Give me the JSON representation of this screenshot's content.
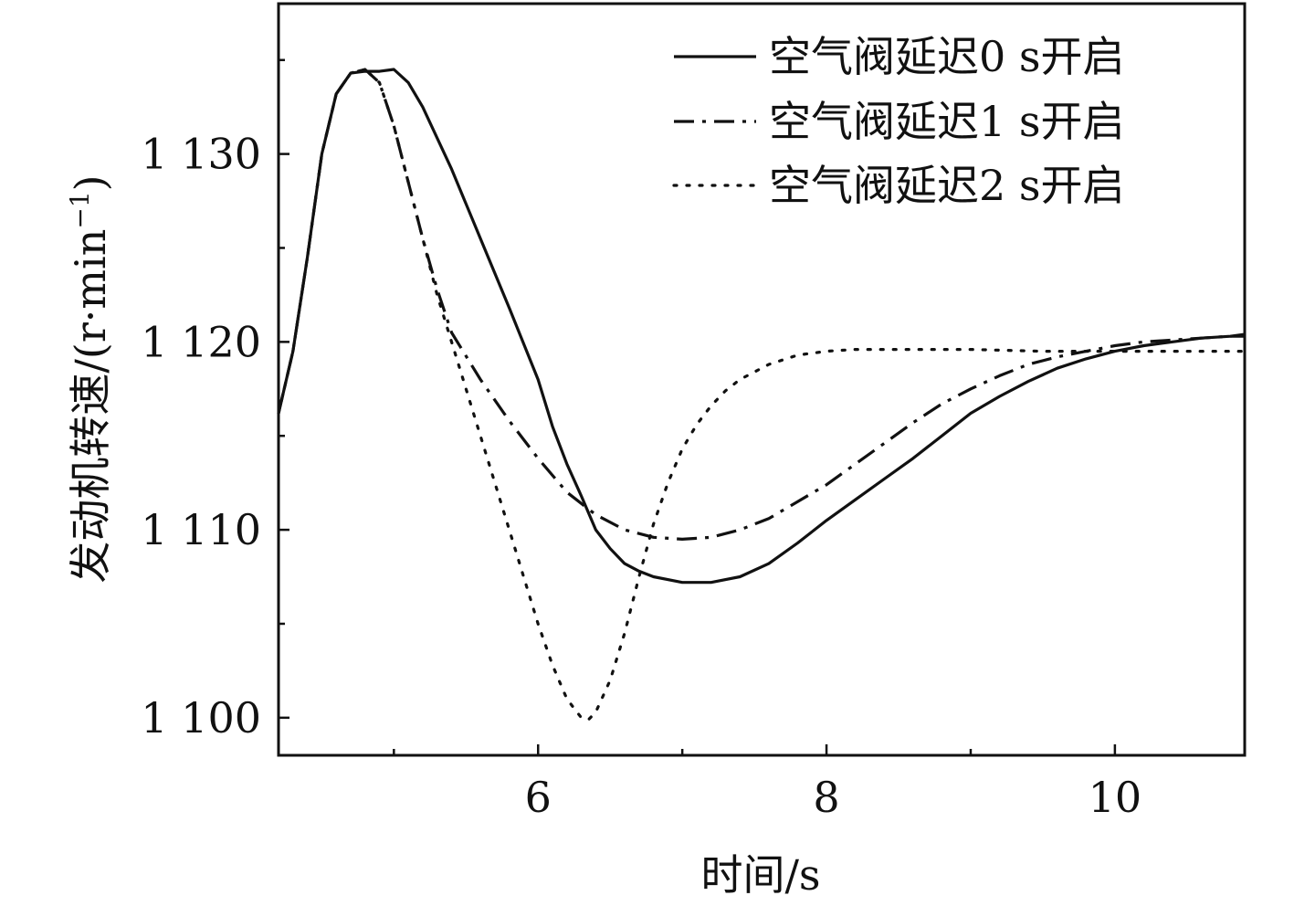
{
  "chart_data": {
    "type": "line",
    "xlabel": "时间/s",
    "ylabel_main": "发动机转速/(r·min",
    "ylabel_sup": "−1",
    "ylabel_close": ")",
    "xlim": [
      4.2,
      10.9
    ],
    "ylim": [
      1098,
      1138
    ],
    "x_major_ticks": [
      6,
      8,
      10
    ],
    "x_tick_labels": [
      "6",
      "8",
      "10"
    ],
    "x_minor_ticks": [
      5,
      7,
      9
    ],
    "y_major_ticks": [
      1100,
      1110,
      1120,
      1130
    ],
    "y_tick_labels": [
      "1 100",
      "1 110",
      "1 120",
      "1 130"
    ],
    "y_minor_ticks": [
      1105,
      1115,
      1125,
      1135
    ],
    "legend_position": "top-right",
    "series": [
      {
        "name": "空气阀延迟0 s开启",
        "style": "solid",
        "x": [
          4.2,
          4.3,
          4.4,
          4.5,
          4.6,
          4.7,
          4.8,
          4.9,
          5.0,
          5.1,
          5.2,
          5.4,
          5.6,
          5.8,
          6.0,
          6.1,
          6.2,
          6.3,
          6.4,
          6.5,
          6.6,
          6.7,
          6.8,
          7.0,
          7.2,
          7.4,
          7.6,
          7.8,
          8.0,
          8.2,
          8.4,
          8.6,
          8.8,
          9.0,
          9.2,
          9.4,
          9.6,
          9.8,
          10.0,
          10.2,
          10.4,
          10.6,
          10.8,
          10.9
        ],
        "y": [
          1116.2,
          1119.5,
          1124.5,
          1130.0,
          1133.2,
          1134.3,
          1134.4,
          1134.4,
          1134.5,
          1133.8,
          1132.5,
          1129.2,
          1125.5,
          1121.8,
          1118.0,
          1115.5,
          1113.5,
          1111.8,
          1110.0,
          1109.0,
          1108.2,
          1107.8,
          1107.5,
          1107.2,
          1107.2,
          1107.5,
          1108.2,
          1109.3,
          1110.5,
          1111.6,
          1112.7,
          1113.8,
          1115.0,
          1116.2,
          1117.1,
          1117.9,
          1118.6,
          1119.1,
          1119.5,
          1119.8,
          1120.0,
          1120.2,
          1120.3,
          1120.4
        ]
      },
      {
        "name": "空气阀延迟1 s开启",
        "style": "dashdot",
        "x": [
          4.2,
          4.3,
          4.4,
          4.5,
          4.6,
          4.7,
          4.8,
          4.9,
          5.0,
          5.1,
          5.2,
          5.3,
          5.4,
          5.6,
          5.8,
          6.0,
          6.2,
          6.4,
          6.6,
          6.8,
          7.0,
          7.2,
          7.4,
          7.6,
          7.8,
          8.0,
          8.2,
          8.4,
          8.6,
          8.8,
          9.0,
          9.2,
          9.4,
          9.6,
          9.8,
          10.0,
          10.2,
          10.4,
          10.6,
          10.8,
          10.9
        ],
        "y": [
          1116.2,
          1119.5,
          1124.5,
          1130.0,
          1133.2,
          1134.3,
          1134.5,
          1133.8,
          1131.5,
          1128.5,
          1125.5,
          1122.8,
          1120.5,
          1118.0,
          1115.8,
          1113.8,
          1112.0,
          1110.8,
          1110.0,
          1109.6,
          1109.5,
          1109.6,
          1110.0,
          1110.6,
          1111.5,
          1112.4,
          1113.5,
          1114.6,
          1115.7,
          1116.7,
          1117.5,
          1118.2,
          1118.8,
          1119.2,
          1119.5,
          1119.8,
          1120.0,
          1120.1,
          1120.2,
          1120.3,
          1120.3
        ]
      },
      {
        "name": "空气阀延迟2 s开启",
        "style": "dotted",
        "x": [
          4.2,
          4.3,
          4.4,
          4.5,
          4.6,
          4.7,
          4.8,
          4.9,
          5.0,
          5.1,
          5.2,
          5.3,
          5.4,
          5.5,
          5.6,
          5.7,
          5.8,
          5.9,
          6.0,
          6.1,
          6.2,
          6.3,
          6.35,
          6.4,
          6.5,
          6.6,
          6.7,
          6.8,
          6.9,
          7.0,
          7.1,
          7.2,
          7.3,
          7.4,
          7.6,
          7.8,
          8.0,
          8.2,
          8.4,
          8.6,
          8.8,
          9.0,
          9.5,
          10.0,
          10.5,
          10.9
        ],
        "y": [
          1116.2,
          1119.5,
          1124.5,
          1130.0,
          1133.2,
          1134.3,
          1134.5,
          1133.8,
          1131.5,
          1128.5,
          1125.5,
          1122.5,
          1120.0,
          1117.5,
          1115.0,
          1112.5,
          1110.0,
          1107.5,
          1105.0,
          1102.8,
          1101.0,
          1100.0,
          1099.9,
          1100.3,
          1102.0,
          1104.5,
          1107.5,
          1110.3,
          1112.5,
          1114.3,
          1115.6,
          1116.6,
          1117.4,
          1118.0,
          1118.8,
          1119.3,
          1119.5,
          1119.6,
          1119.6,
          1119.6,
          1119.6,
          1119.6,
          1119.5,
          1119.5,
          1119.5,
          1119.5
        ]
      }
    ]
  }
}
